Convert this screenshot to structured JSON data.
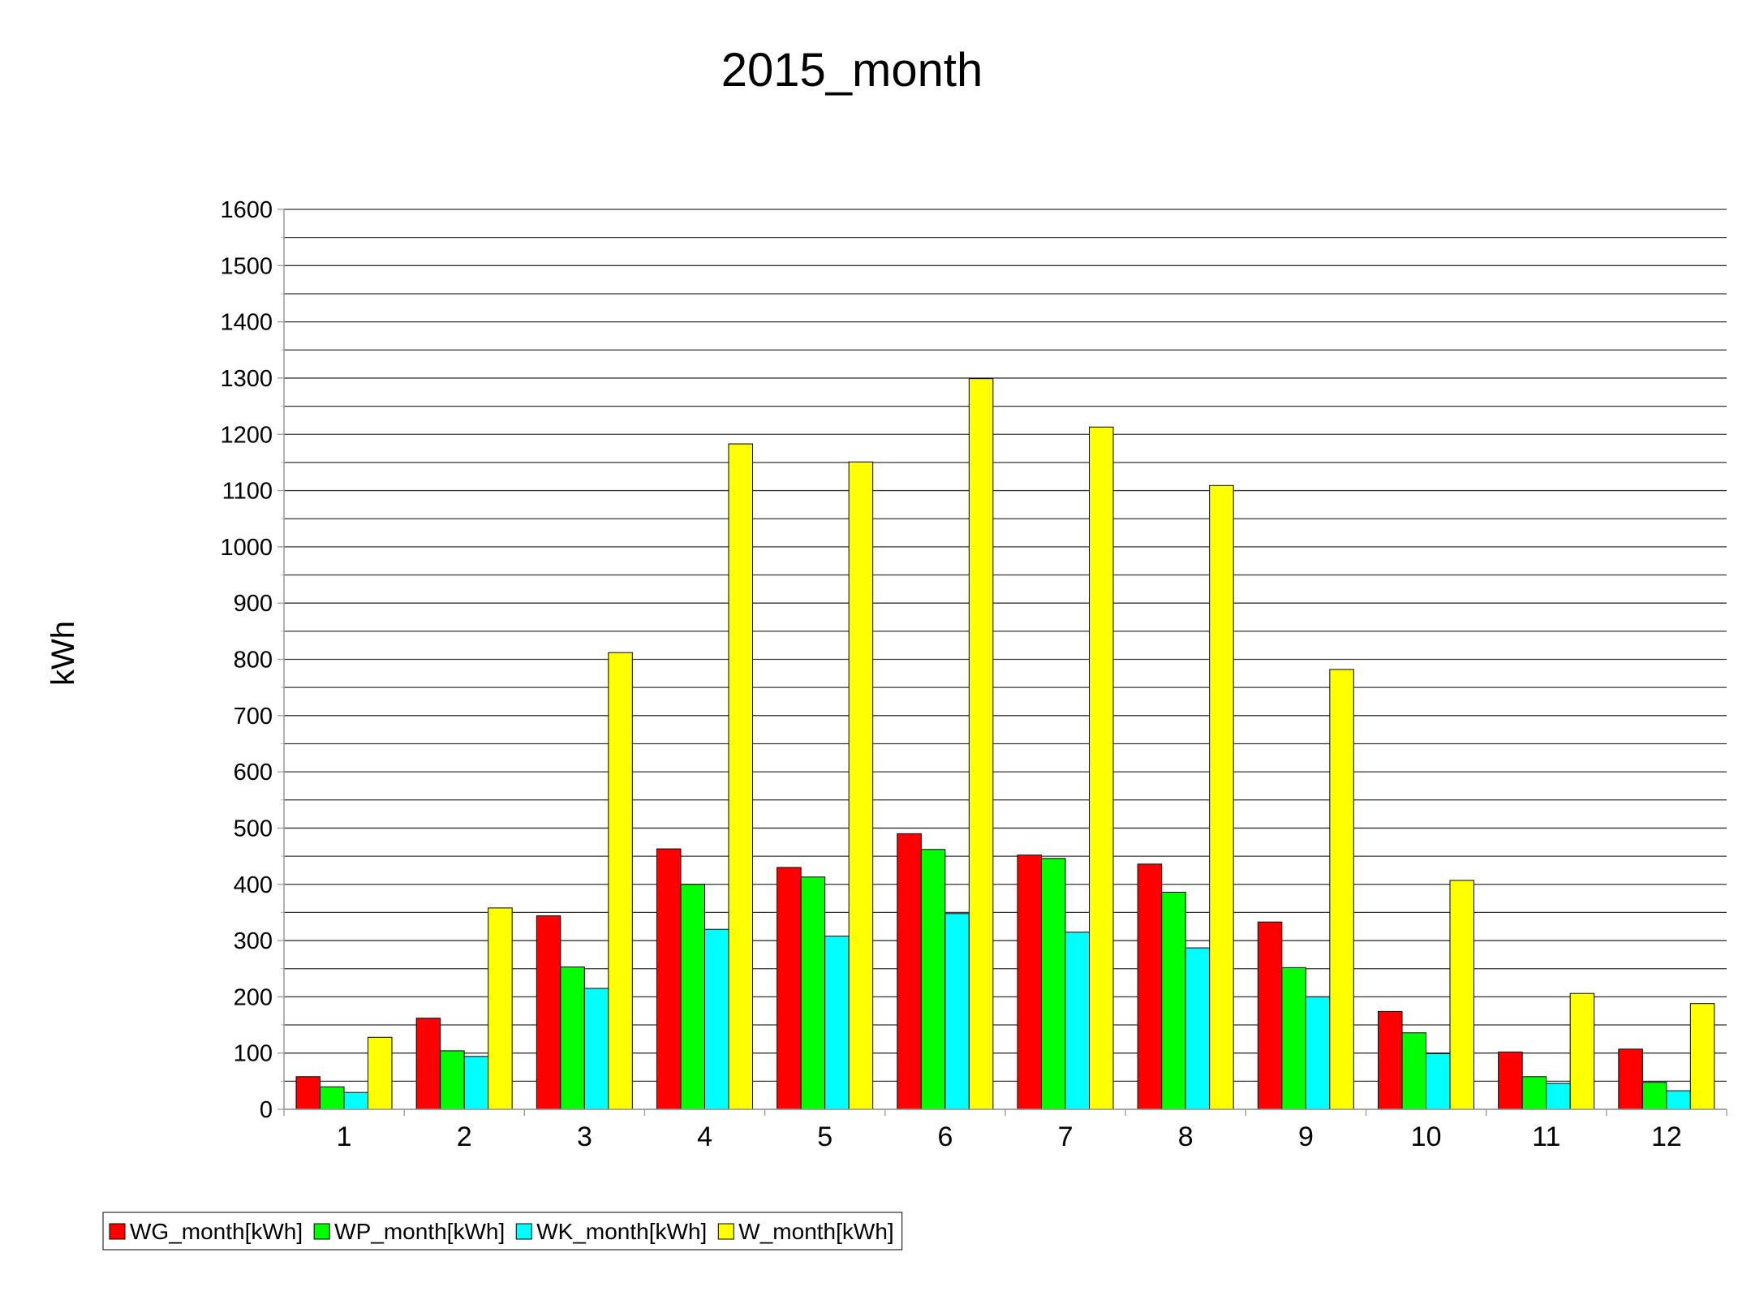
{
  "chart_data": {
    "type": "bar",
    "title": "2015_month",
    "xlabel": "",
    "ylabel": "kWh",
    "ylim": [
      0,
      1600
    ],
    "ytick_step": 100,
    "yticks": [
      "0",
      "100",
      "200",
      "300",
      "400",
      "500",
      "600",
      "700",
      "800",
      "900",
      "1000",
      "1100",
      "1200",
      "1300",
      "1400",
      "1500",
      "1600"
    ],
    "grid": true,
    "legend_position": "bottom-left",
    "categories": [
      "1",
      "2",
      "3",
      "4",
      "5",
      "6",
      "7",
      "8",
      "9",
      "10",
      "11",
      "12"
    ],
    "series": [
      {
        "name": "WG_month[kWh]",
        "color": "#ff0000",
        "values": [
          58,
          162,
          344,
          463,
          430,
          490,
          452,
          436,
          333,
          174,
          102,
          107
        ]
      },
      {
        "name": "WP_month[kWh]",
        "color": "#00ff00",
        "values": [
          40,
          104,
          253,
          400,
          413,
          462,
          446,
          386,
          252,
          136,
          58,
          48
        ]
      },
      {
        "name": "WK_month[kWh]",
        "color": "#00ffff",
        "values": [
          30,
          94,
          215,
          320,
          308,
          348,
          315,
          287,
          200,
          99,
          46,
          33
        ]
      },
      {
        "name": "W_month[kWh]",
        "color": "#ffff00",
        "values": [
          128,
          358,
          812,
          1183,
          1151,
          1299,
          1213,
          1109,
          782,
          407,
          206,
          188
        ]
      }
    ]
  }
}
